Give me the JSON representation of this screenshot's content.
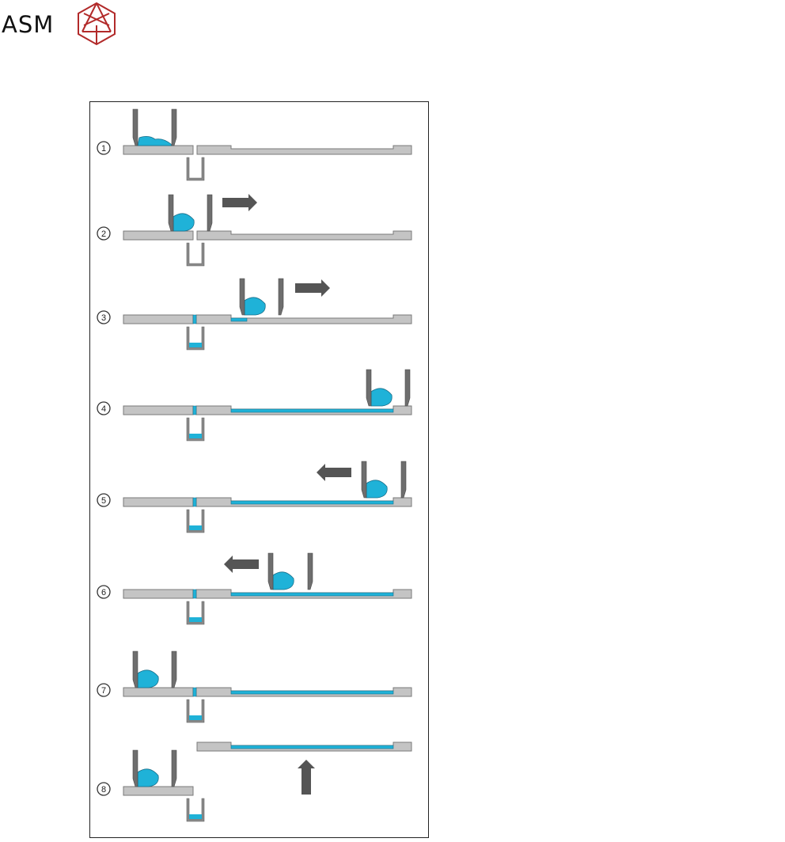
{
  "logo": {
    "text": "ASM",
    "mark": "crystal-hexagon-logo",
    "color": "#b22a2a"
  },
  "colors": {
    "liquid": "#1fb2d8",
    "plate": "#c4c4c4",
    "squeegee": "#6e6e6e",
    "arrow": "#555555"
  },
  "steps": [
    {
      "label": "1",
      "liquid": "puddle",
      "arrow": "none",
      "film": "none",
      "filled_slot": false,
      "trough_filled": false
    },
    {
      "label": "2",
      "liquid": "drop",
      "arrow": "right",
      "film": "none",
      "filled_slot": false,
      "trough_filled": false
    },
    {
      "label": "3",
      "liquid": "drop",
      "arrow": "right",
      "film": "partial",
      "filled_slot": true,
      "trough_filled": true
    },
    {
      "label": "4",
      "liquid": "drop",
      "arrow": "none",
      "film": "full",
      "filled_slot": true,
      "trough_filled": true
    },
    {
      "label": "5",
      "liquid": "drop",
      "arrow": "left",
      "film": "full",
      "filled_slot": true,
      "trough_filled": true
    },
    {
      "label": "6",
      "liquid": "drop",
      "arrow": "left",
      "film": "full",
      "filled_slot": true,
      "trough_filled": true
    },
    {
      "label": "7",
      "liquid": "drop",
      "arrow": "none",
      "film": "full",
      "filled_slot": true,
      "trough_filled": true
    },
    {
      "label": "8",
      "liquid": "drop",
      "arrow": "up",
      "film": "full",
      "filled_slot": false,
      "trough_filled": true
    }
  ]
}
